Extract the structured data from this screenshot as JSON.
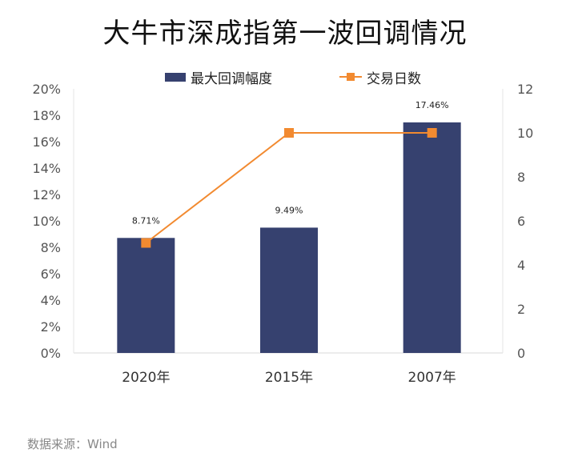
{
  "chart_data": {
    "type": "bar",
    "title": "大牛市深成指第一波回调情况",
    "categories": [
      "2020年",
      "2015年",
      "2007年"
    ],
    "series": [
      {
        "name": "最大回调幅度",
        "kind": "bar",
        "axis": "left",
        "values": [
          8.71,
          9.49,
          17.46
        ],
        "labels": [
          "8.71%",
          "9.49%",
          "17.46%"
        ],
        "color": "#36416f"
      },
      {
        "name": "交易日数",
        "kind": "line",
        "axis": "right",
        "values": [
          5,
          10,
          10
        ],
        "color": "#f28a30"
      }
    ],
    "y_left": {
      "min": 0,
      "max": 20,
      "step": 2,
      "tick_labels": [
        "0%",
        "2%",
        "4%",
        "6%",
        "8%",
        "10%",
        "12%",
        "14%",
        "16%",
        "18%",
        "20%"
      ]
    },
    "y_right": {
      "min": 0,
      "max": 12,
      "step": 2,
      "tick_labels": [
        "0",
        "2",
        "4",
        "6",
        "8",
        "10",
        "12"
      ]
    },
    "legend_position": "top-center",
    "grid": false
  },
  "source_text": "数据来源：Wind"
}
